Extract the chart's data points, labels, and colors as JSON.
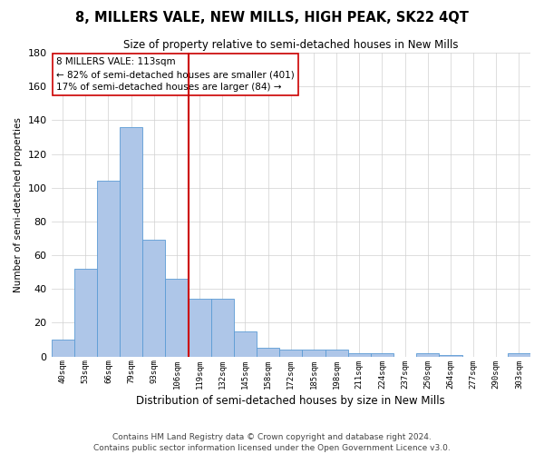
{
  "title": "8, MILLERS VALE, NEW MILLS, HIGH PEAK, SK22 4QT",
  "subtitle": "Size of property relative to semi-detached houses in New Mills",
  "xlabel": "Distribution of semi-detached houses by size in New Mills",
  "ylabel": "Number of semi-detached properties",
  "annotation_line1": "8 MILLERS VALE: 113sqm",
  "annotation_line2": "← 82% of semi-detached houses are smaller (401)",
  "annotation_line3": "17% of semi-detached houses are larger (84) →",
  "bin_labels": [
    "40sqm",
    "53sqm",
    "66sqm",
    "79sqm",
    "93sqm",
    "106sqm",
    "119sqm",
    "132sqm",
    "145sqm",
    "158sqm",
    "172sqm",
    "185sqm",
    "198sqm",
    "211sqm",
    "224sqm",
    "237sqm",
    "250sqm",
    "264sqm",
    "277sqm",
    "290sqm",
    "303sqm"
  ],
  "values": [
    10,
    52,
    104,
    136,
    69,
    46,
    34,
    34,
    15,
    5,
    4,
    4,
    4,
    2,
    2,
    0,
    2,
    1,
    0,
    0,
    2
  ],
  "bar_color": "#aec6e8",
  "bar_edge_color": "#5b9bd5",
  "vline_bin_index": 6,
  "vline_color": "#cc0000",
  "annotation_box_edgecolor": "#cc0000",
  "ylim": [
    0,
    180
  ],
  "yticks": [
    0,
    20,
    40,
    60,
    80,
    100,
    120,
    140,
    160,
    180
  ],
  "footer_line1": "Contains HM Land Registry data © Crown copyright and database right 2024.",
  "footer_line2": "Contains public sector information licensed under the Open Government Licence v3.0.",
  "background_color": "#ffffff",
  "grid_color": "#d0d0d0",
  "title_fontsize": 10.5,
  "subtitle_fontsize": 8.5,
  "ylabel_fontsize": 7.5,
  "xlabel_fontsize": 8.5,
  "ytick_fontsize": 8,
  "xtick_fontsize": 6.5,
  "annotation_fontsize": 7.5,
  "footer_fontsize": 6.5
}
